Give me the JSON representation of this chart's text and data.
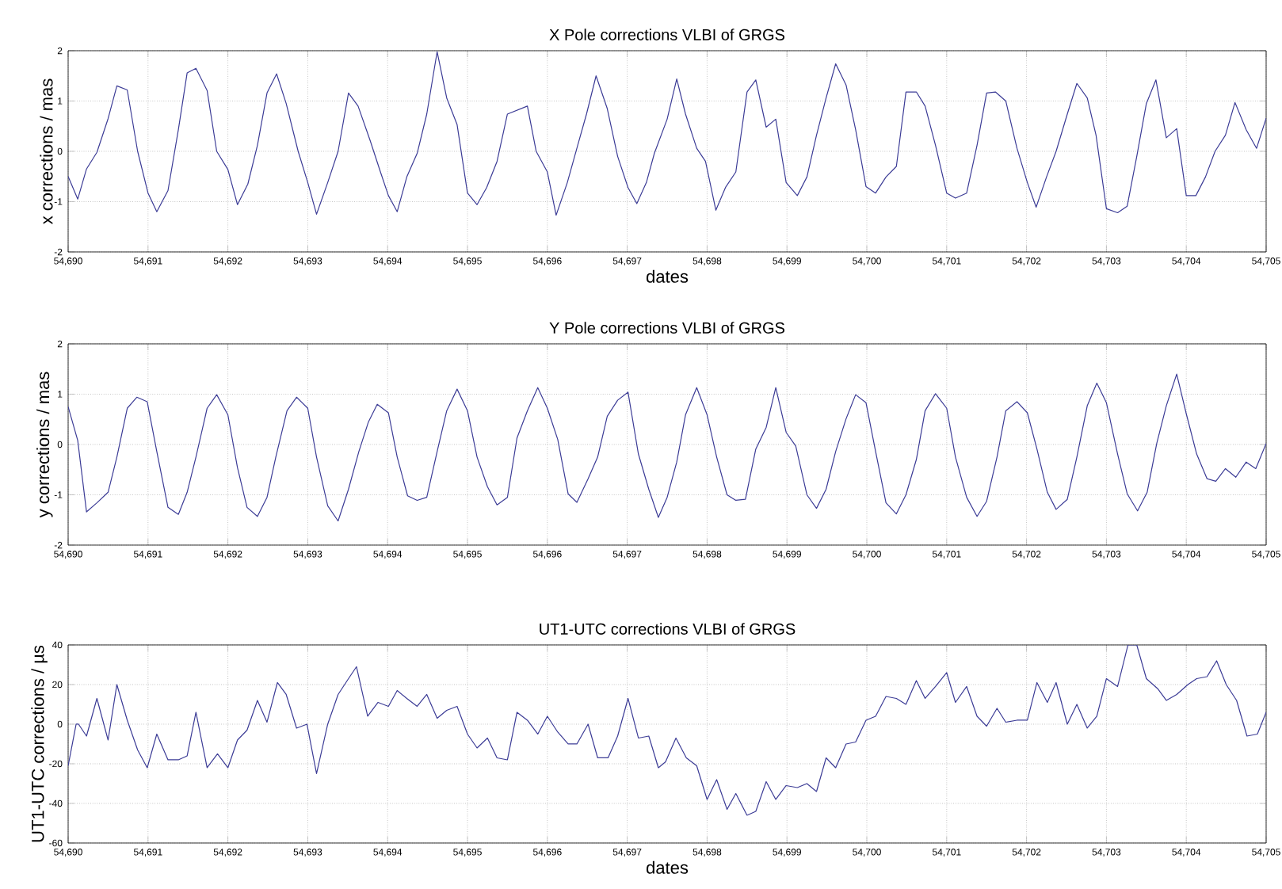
{
  "chart_data": [
    {
      "type": "line",
      "title": "X Pole corrections VLBI of GRGS",
      "xlabel": "dates",
      "ylabel": "x corrections / mas",
      "grid": true,
      "line_style": "solid",
      "xlim": [
        54690,
        54705
      ],
      "ylim": [
        -2,
        2
      ],
      "yticks": [
        -2,
        -1,
        0,
        1,
        2
      ],
      "xticks": [
        {
          "value": 54690,
          "label": "54,690"
        },
        {
          "value": 54691,
          "label": "54,691"
        },
        {
          "value": 54692,
          "label": "54,692"
        },
        {
          "value": 54693,
          "label": "54,693"
        },
        {
          "value": 54694,
          "label": "54,694"
        },
        {
          "value": 54695,
          "label": "54,695"
        },
        {
          "value": 54696,
          "label": "54,696"
        },
        {
          "value": 54697,
          "label": "54,697"
        },
        {
          "value": 54698,
          "label": "54,698"
        },
        {
          "value": 54699,
          "label": "54,699"
        },
        {
          "value": 54700,
          "label": "54,700"
        },
        {
          "value": 54701,
          "label": "54,701"
        },
        {
          "value": 54702,
          "label": "54,702"
        },
        {
          "value": 54703,
          "label": "54,703"
        },
        {
          "value": 54704,
          "label": "54,704"
        },
        {
          "value": 54705,
          "label": "54,705"
        }
      ],
      "series": [
        {
          "color": "#3c3c96",
          "x": [
            54690,
            54690.12,
            54690.23,
            54690.36,
            54690.5,
            54690.61,
            54690.74,
            54690.87,
            54691,
            54691.11,
            54691.25,
            54691.38,
            54691.49,
            54691.6,
            54691.74,
            54691.86,
            54692,
            54692.12,
            54692.25,
            54692.37,
            54692.49,
            54692.61,
            54692.73,
            54692.88,
            54693,
            54693.11,
            54693.25,
            54693.38,
            54693.51,
            54693.63,
            54693.78,
            54693.91,
            54694.01,
            54694.12,
            54694.24,
            54694.37,
            54694.49,
            54694.62,
            54694.74,
            54694.87,
            54695,
            54695.12,
            54695.24,
            54695.37,
            54695.5,
            54695.75,
            54695.86,
            54696,
            54696.11,
            54696.25,
            54696.38,
            54696.49,
            54696.61,
            54696.75,
            54696.88,
            54697.01,
            54697.12,
            54697.24,
            54697.34,
            54697.5,
            54697.62,
            54697.73,
            54697.87,
            54697.98,
            54698.11,
            54698.23,
            54698.36,
            54698.5,
            54698.61,
            54698.74,
            54698.86,
            54698.99,
            54699.13,
            54699.25,
            54699.37,
            54699.49,
            54699.61,
            54699.74,
            54699.86,
            54699.99,
            54700.11,
            54700.24,
            54700.37,
            54700.49,
            54700.62,
            54700.73,
            54700.86,
            54701,
            54701.11,
            54701.25,
            54701.38,
            54701.5,
            54701.61,
            54701.74,
            54701.88,
            54702.01,
            54702.12,
            54702.25,
            54702.37,
            54702.51,
            54702.63,
            54702.76,
            54702.87,
            54703,
            54703.14,
            54703.26,
            54703.38,
            54703.5,
            54703.62,
            54703.75,
            54703.88,
            54704,
            54704.12,
            54704.24,
            54704.36,
            54704.49,
            54704.61,
            54704.75,
            54704.88,
            54705
          ],
          "values": [
            -0.5,
            -0.95,
            -0.35,
            -0.02,
            0.65,
            1.3,
            1.22,
            0,
            -0.83,
            -1.2,
            -0.78,
            0.43,
            1.56,
            1.65,
            1.21,
            0,
            -0.36,
            -1.06,
            -0.65,
            0.12,
            1.16,
            1.54,
            0.95,
            0,
            -0.62,
            -1.25,
            -0.62,
            0,
            1.16,
            0.9,
            0.22,
            -0.41,
            -0.88,
            -1.2,
            -0.51,
            -0.04,
            0.74,
            1.98,
            1.06,
            0.53,
            -0.83,
            -1.06,
            -0.72,
            -0.2,
            0.74,
            0.9,
            0,
            -0.41,
            -1.27,
            -0.62,
            0.12,
            0.74,
            1.5,
            0.85,
            -0.1,
            -0.72,
            -1.04,
            -0.62,
            -0.04,
            0.64,
            1.44,
            0.74,
            0.06,
            -0.2,
            -1.17,
            -0.72,
            -0.41,
            1.18,
            1.42,
            0.48,
            0.64,
            -0.62,
            -0.88,
            -0.51,
            0.32,
            1.06,
            1.74,
            1.32,
            0.43,
            -0.7,
            -0.83,
            -0.51,
            -0.3,
            1.18,
            1.18,
            0.9,
            0.12,
            -0.83,
            -0.93,
            -0.83,
            0.12,
            1.16,
            1.18,
            1.0,
            0.06,
            -0.62,
            -1.11,
            -0.51,
            0,
            0.74,
            1.35,
            1.06,
            0.32,
            -1.14,
            -1.22,
            -1.09,
            -0.1,
            0.95,
            1.42,
            0.27,
            0.45,
            -0.88,
            -0.88,
            -0.51,
            0,
            0.32,
            0.97,
            0.43,
            0.06,
            0.66
          ]
        }
      ]
    },
    {
      "type": "line",
      "title": "Y Pole corrections VLBI of GRGS",
      "ylabel": "y corrections / mas",
      "grid": true,
      "line_style": "solid",
      "xlim": [
        54690,
        54705
      ],
      "ylim": [
        -2,
        2
      ],
      "yticks": [
        -2,
        -1,
        0,
        1,
        2
      ],
      "xticks": [
        {
          "value": 54690,
          "label": "54,690"
        },
        {
          "value": 54691,
          "label": "54,691"
        },
        {
          "value": 54692,
          "label": "54,692"
        },
        {
          "value": 54693,
          "label": "54,693"
        },
        {
          "value": 54694,
          "label": "54,694"
        },
        {
          "value": 54695,
          "label": "54,695"
        },
        {
          "value": 54696,
          "label": "54,696"
        },
        {
          "value": 54697,
          "label": "54,697"
        },
        {
          "value": 54698,
          "label": "54,698"
        },
        {
          "value": 54699,
          "label": "54,699"
        },
        {
          "value": 54700,
          "label": "54,700"
        },
        {
          "value": 54701,
          "label": "54,701"
        },
        {
          "value": 54702,
          "label": "54,702"
        },
        {
          "value": 54703,
          "label": "54,703"
        },
        {
          "value": 54704,
          "label": "54,704"
        },
        {
          "value": 54705,
          "label": "54,705"
        }
      ],
      "series": [
        {
          "color": "#3c3c96",
          "x": [
            54690,
            54690.12,
            54690.23,
            54690.36,
            54690.5,
            54690.61,
            54690.74,
            54690.86,
            54690.99,
            54691.11,
            54691.25,
            54691.38,
            54691.49,
            54691.6,
            54691.74,
            54691.86,
            54692,
            54692.12,
            54692.24,
            54692.37,
            54692.49,
            54692.6,
            54692.74,
            54692.86,
            54693,
            54693.11,
            54693.25,
            54693.38,
            54693.51,
            54693.64,
            54693.76,
            54693.87,
            54694.01,
            54694.12,
            54694.25,
            54694.37,
            54694.49,
            54694.62,
            54694.74,
            54694.87,
            54695,
            54695.12,
            54695.25,
            54695.37,
            54695.5,
            54695.62,
            54695.75,
            54695.88,
            54696,
            54696.13,
            54696.26,
            54696.37,
            54696.51,
            54696.63,
            54696.75,
            54696.88,
            54697.01,
            54697.14,
            54697.27,
            54697.39,
            54697.5,
            54697.62,
            54697.73,
            54697.87,
            54698,
            54698.12,
            54698.25,
            54698.36,
            54698.48,
            54698.61,
            54698.74,
            54698.86,
            54698.99,
            54699.11,
            54699.25,
            54699.37,
            54699.49,
            54699.61,
            54699.74,
            54699.86,
            54699.99,
            54700.11,
            54700.24,
            54700.37,
            54700.49,
            54700.62,
            54700.73,
            54700.86,
            54701,
            54701.11,
            54701.25,
            54701.38,
            54701.5,
            54701.63,
            54701.74,
            54701.88,
            54702.01,
            54702.13,
            54702.26,
            54702.37,
            54702.51,
            54702.63,
            54702.76,
            54702.88,
            54703,
            54703.14,
            54703.26,
            54703.39,
            54703.51,
            54703.63,
            54703.75,
            54703.88,
            54704,
            54704.13,
            54704.26,
            54704.37,
            54704.49,
            54704.62,
            54704.75,
            54704.87,
            54705
          ],
          "values": [
            0.75,
            0.08,
            -1.34,
            -1.16,
            -0.95,
            -0.25,
            0.72,
            0.94,
            0.85,
            -0.14,
            -1.25,
            -1.39,
            -0.95,
            -0.25,
            0.72,
            0.99,
            0.59,
            -0.46,
            -1.25,
            -1.43,
            -1.05,
            -0.25,
            0.67,
            0.94,
            0.72,
            -0.25,
            -1.22,
            -1.52,
            -0.89,
            -0.14,
            0.45,
            0.8,
            0.63,
            -0.25,
            -1.02,
            -1.11,
            -1.05,
            -0.14,
            0.67,
            1.1,
            0.67,
            -0.25,
            -0.84,
            -1.2,
            -1.05,
            0.13,
            0.67,
            1.13,
            0.72,
            0.1,
            -0.98,
            -1.15,
            -0.68,
            -0.25,
            0.56,
            0.88,
            1.04,
            -0.19,
            -0.89,
            -1.45,
            -1.05,
            -0.35,
            0.59,
            1.13,
            0.59,
            -0.25,
            -1.0,
            -1.11,
            -1.09,
            -0.09,
            0.34,
            1.13,
            0.24,
            -0.03,
            -1.0,
            -1.27,
            -0.89,
            -0.14,
            0.51,
            0.99,
            0.83,
            -0.14,
            -1.16,
            -1.38,
            -1.0,
            -0.3,
            0.67,
            1.01,
            0.72,
            -0.25,
            -1.05,
            -1.43,
            -1.13,
            -0.25,
            0.67,
            0.85,
            0.63,
            -0.09,
            -0.95,
            -1.29,
            -1.09,
            -0.25,
            0.77,
            1.22,
            0.83,
            -0.19,
            -0.98,
            -1.32,
            -0.95,
            0.02,
            0.77,
            1.4,
            0.61,
            -0.19,
            -0.68,
            -0.73,
            -0.48,
            -0.65,
            -0.35,
            -0.48,
            0.02
          ]
        }
      ]
    },
    {
      "type": "line",
      "title": "UT1-UTC corrections VLBI of GRGS",
      "xlabel": "dates",
      "ylabel": "UT1-UTC corrections / µs",
      "grid": true,
      "line_style": "solid",
      "xlim": [
        54690,
        54705
      ],
      "ylim": [
        -60,
        40
      ],
      "yticks": [
        -60,
        -40,
        -20,
        0,
        20,
        40
      ],
      "xticks": [
        {
          "value": 54690,
          "label": "54,690"
        },
        {
          "value": 54691,
          "label": "54,691"
        },
        {
          "value": 54692,
          "label": "54,692"
        },
        {
          "value": 54693,
          "label": "54,693"
        },
        {
          "value": 54694,
          "label": "54,694"
        },
        {
          "value": 54695,
          "label": "54,695"
        },
        {
          "value": 54696,
          "label": "54,696"
        },
        {
          "value": 54697,
          "label": "54,697"
        },
        {
          "value": 54698,
          "label": "54,698"
        },
        {
          "value": 54699,
          "label": "54,699"
        },
        {
          "value": 54700,
          "label": "54,700"
        },
        {
          "value": 54701,
          "label": "54,701"
        },
        {
          "value": 54702,
          "label": "54,702"
        },
        {
          "value": 54703,
          "label": "54,703"
        },
        {
          "value": 54704,
          "label": "54,704"
        },
        {
          "value": 54705,
          "label": "54,705"
        }
      ],
      "series": [
        {
          "color": "#3c3c96",
          "x": [
            54690,
            54690.1,
            54690.13,
            54690.23,
            54690.36,
            54690.5,
            54690.61,
            54690.74,
            54690.87,
            54690.99,
            54691.11,
            54691.25,
            54691.38,
            54691.49,
            54691.6,
            54691.74,
            54691.87,
            54692,
            54692.12,
            54692.24,
            54692.37,
            54692.49,
            54692.62,
            54692.73,
            54692.86,
            54692.99,
            54693.11,
            54693.25,
            54693.38,
            54693.51,
            54693.61,
            54693.75,
            54693.88,
            54694.01,
            54694.12,
            54694.24,
            54694.37,
            54694.49,
            54694.62,
            54694.74,
            54694.87,
            54695,
            54695.12,
            54695.25,
            54695.37,
            54695.5,
            54695.62,
            54695.75,
            54695.88,
            54696,
            54696.13,
            54696.26,
            54696.37,
            54696.51,
            54696.63,
            54696.76,
            54696.88,
            54697.01,
            54697.14,
            54697.27,
            54697.39,
            54697.48,
            54697.61,
            54697.74,
            54697.87,
            54698,
            54698.12,
            54698.25,
            54698.36,
            54698.5,
            54698.61,
            54698.74,
            54698.86,
            54698.99,
            54699.13,
            54699.25,
            54699.37,
            54699.49,
            54699.61,
            54699.74,
            54699.86,
            54699.99,
            54700.11,
            54700.24,
            54700.37,
            54700.49,
            54700.62,
            54700.73,
            54700.86,
            54701,
            54701.11,
            54701.25,
            54701.38,
            54701.5,
            54701.63,
            54701.74,
            54701.88,
            54702.01,
            54702.13,
            54702.26,
            54702.37,
            54702.51,
            54702.63,
            54702.76,
            54702.88,
            54703,
            54703.14,
            54703.27,
            54703.38,
            54703.5,
            54703.64,
            54703.75,
            54703.88,
            54704.02,
            54704.13,
            54704.26,
            54704.38,
            54704.5,
            54704.63,
            54704.76,
            54704.89,
            54705
          ],
          "values": [
            -21,
            0,
            0,
            -6,
            13,
            -8,
            20,
            2,
            -13,
            -22,
            -5,
            -18,
            -18,
            -16,
            6,
            -22,
            -15,
            -22,
            -8,
            -3,
            12,
            1,
            21,
            15,
            -2,
            0,
            -25,
            0,
            15,
            23,
            29,
            4,
            11,
            9,
            17,
            13,
            9,
            15,
            3,
            7,
            9,
            -5,
            -12,
            -7,
            -17,
            -18,
            6,
            2,
            -5,
            4,
            -4,
            -10,
            -10,
            0,
            -17,
            -17,
            -6,
            13,
            -7,
            -6,
            -22,
            -19,
            -7,
            -17,
            -21,
            -38,
            -28,
            -43,
            -35,
            -46,
            -44,
            -29,
            -38,
            -31,
            -32,
            -30,
            -34,
            -17,
            -22,
            -10,
            -9,
            2,
            4,
            14,
            13,
            10,
            22,
            13,
            19,
            26,
            11,
            19,
            4,
            -1,
            8,
            1,
            2,
            2,
            21,
            11,
            21,
            0,
            10,
            -2,
            4,
            23,
            19,
            40,
            40,
            23,
            18,
            12,
            15,
            20,
            23,
            24,
            32,
            20,
            12,
            -6,
            -5,
            6
          ]
        }
      ]
    }
  ]
}
